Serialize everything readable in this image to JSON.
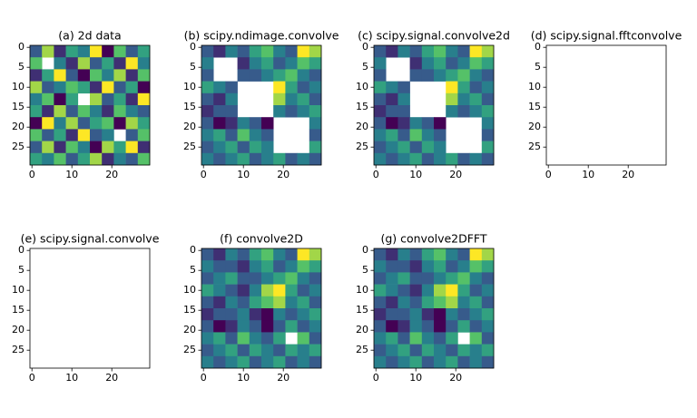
{
  "chart_data": [
    {
      "type": "heatmap",
      "title": "(a) 2d data",
      "xlim": [
        -0.5,
        29.5
      ],
      "ylim": [
        29.5,
        -0.5
      ],
      "xticks": [
        0,
        10,
        20
      ],
      "yticks": [
        0,
        5,
        10,
        15,
        20,
        25
      ],
      "cmap": "viridis",
      "values": [
        [
          3,
          7,
          2,
          5,
          4,
          8,
          1,
          6,
          3,
          5
        ],
        [
          6,
          null,
          4,
          2,
          7,
          3,
          5,
          2,
          8,
          4
        ],
        [
          2,
          5,
          8,
          3,
          1,
          6,
          4,
          7,
          2,
          6
        ],
        [
          7,
          3,
          4,
          6,
          5,
          2,
          8,
          3,
          5,
          1
        ],
        [
          4,
          6,
          1,
          5,
          null,
          7,
          3,
          5,
          2,
          8
        ],
        [
          5,
          2,
          7,
          3,
          6,
          4,
          2,
          6,
          4,
          3
        ],
        [
          1,
          8,
          4,
          7,
          3,
          5,
          6,
          1,
          7,
          5
        ],
        [
          6,
          3,
          5,
          2,
          8,
          3,
          4,
          null,
          3,
          6
        ],
        [
          3,
          7,
          2,
          6,
          4,
          1,
          7,
          5,
          8,
          2
        ],
        [
          5,
          4,
          6,
          3,
          5,
          7,
          2,
          4,
          3,
          6
        ]
      ]
    },
    {
      "type": "heatmap",
      "title": "(b) scipy.ndimage.convolve",
      "xlim": [
        -0.5,
        29.5
      ],
      "ylim": [
        29.5,
        -0.5
      ],
      "xticks": [
        0,
        10,
        20
      ],
      "yticks": [
        0,
        5,
        10,
        15,
        20,
        25
      ],
      "cmap": "viridis",
      "values": [
        [
          3,
          2,
          4,
          3,
          5,
          6,
          4,
          3,
          8,
          7
        ],
        [
          4,
          null,
          null,
          2,
          4,
          5,
          3,
          4,
          6,
          5
        ],
        [
          3,
          null,
          null,
          3,
          3,
          4,
          5,
          6,
          4,
          3
        ],
        [
          5,
          4,
          3,
          null,
          null,
          null,
          8,
          5,
          3,
          4
        ],
        [
          3,
          2,
          4,
          null,
          null,
          null,
          7,
          4,
          5,
          3
        ],
        [
          2,
          3,
          3,
          null,
          null,
          null,
          4,
          3,
          4,
          5
        ],
        [
          3,
          1,
          2,
          4,
          3,
          1,
          null,
          null,
          null,
          4
        ],
        [
          4,
          5,
          3,
          6,
          4,
          3,
          null,
          null,
          null,
          3
        ],
        [
          3,
          4,
          5,
          3,
          5,
          4,
          null,
          null,
          null,
          5
        ],
        [
          4,
          3,
          4,
          5,
          3,
          4,
          5,
          3,
          4,
          3
        ]
      ]
    },
    {
      "type": "heatmap",
      "title": "(c) scipy.signal.convolve2d",
      "xlim": [
        -0.5,
        29.5
      ],
      "ylim": [
        29.5,
        -0.5
      ],
      "xticks": [
        0,
        10,
        20
      ],
      "yticks": [
        0,
        5,
        10,
        15,
        20,
        25
      ],
      "cmap": "viridis",
      "values": [
        [
          3,
          2,
          4,
          3,
          5,
          6,
          4,
          3,
          8,
          7
        ],
        [
          4,
          null,
          null,
          2,
          4,
          5,
          3,
          4,
          6,
          5
        ],
        [
          3,
          null,
          null,
          3,
          3,
          4,
          5,
          6,
          4,
          3
        ],
        [
          5,
          4,
          3,
          null,
          null,
          null,
          8,
          5,
          3,
          4
        ],
        [
          3,
          2,
          4,
          null,
          null,
          null,
          7,
          4,
          5,
          3
        ],
        [
          2,
          3,
          3,
          null,
          null,
          null,
          4,
          3,
          4,
          5
        ],
        [
          3,
          1,
          2,
          4,
          3,
          1,
          null,
          null,
          null,
          4
        ],
        [
          4,
          5,
          3,
          6,
          4,
          3,
          null,
          null,
          null,
          3
        ],
        [
          3,
          4,
          5,
          3,
          5,
          4,
          null,
          null,
          null,
          5
        ],
        [
          4,
          3,
          4,
          5,
          3,
          4,
          5,
          3,
          4,
          3
        ]
      ]
    },
    {
      "type": "heatmap",
      "title": "(d) scipy.signal.fftconvolve",
      "xlim": [
        -0.5,
        29.5
      ],
      "ylim": [
        29.5,
        -0.5
      ],
      "xticks": [
        0,
        10,
        20
      ],
      "yticks": [
        0,
        5,
        10,
        15,
        20,
        25
      ],
      "cmap": "viridis"
    },
    {
      "type": "heatmap",
      "title": "(e) scipy.signal.convolve",
      "xlim": [
        -0.5,
        29.5
      ],
      "ylim": [
        29.5,
        -0.5
      ],
      "xticks": [
        0,
        10,
        20
      ],
      "yticks": [
        0,
        5,
        10,
        15,
        20,
        25
      ],
      "cmap": "viridis"
    },
    {
      "type": "heatmap",
      "title": "(f) convolve2D",
      "xlim": [
        -0.5,
        29.5
      ],
      "ylim": [
        29.5,
        -0.5
      ],
      "xticks": [
        0,
        10,
        20
      ],
      "yticks": [
        0,
        5,
        10,
        15,
        20,
        25
      ],
      "cmap": "viridis",
      "values": [
        [
          3,
          2,
          4,
          3,
          5,
          6,
          4,
          3,
          8,
          7
        ],
        [
          4,
          3,
          3,
          2,
          4,
          5,
          3,
          4,
          6,
          5
        ],
        [
          3,
          4,
          5,
          3,
          3,
          4,
          5,
          6,
          4,
          3
        ],
        [
          5,
          4,
          3,
          2,
          4,
          7,
          8,
          5,
          3,
          4
        ],
        [
          3,
          2,
          4,
          3,
          5,
          6,
          7,
          4,
          5,
          3
        ],
        [
          2,
          3,
          3,
          4,
          2,
          1,
          4,
          3,
          4,
          5
        ],
        [
          3,
          1,
          2,
          4,
          3,
          1,
          3,
          5,
          3,
          4
        ],
        [
          4,
          5,
          3,
          6,
          4,
          3,
          5,
          null,
          6,
          3
        ],
        [
          3,
          4,
          5,
          3,
          5,
          4,
          3,
          5,
          4,
          5
        ],
        [
          4,
          3,
          4,
          5,
          3,
          4,
          5,
          3,
          4,
          3
        ]
      ]
    },
    {
      "type": "heatmap",
      "title": "(g) convolve2DFFT",
      "xlim": [
        -0.5,
        29.5
      ],
      "ylim": [
        29.5,
        -0.5
      ],
      "xticks": [
        0,
        10,
        20
      ],
      "yticks": [
        0,
        5,
        10,
        15,
        20,
        25
      ],
      "cmap": "viridis",
      "values": [
        [
          3,
          2,
          4,
          3,
          5,
          6,
          4,
          3,
          8,
          7
        ],
        [
          4,
          3,
          3,
          2,
          4,
          5,
          3,
          4,
          6,
          5
        ],
        [
          3,
          4,
          5,
          3,
          3,
          4,
          5,
          6,
          4,
          3
        ],
        [
          5,
          4,
          3,
          2,
          4,
          7,
          8,
          5,
          3,
          4
        ],
        [
          3,
          2,
          4,
          3,
          5,
          6,
          7,
          4,
          5,
          3
        ],
        [
          2,
          3,
          3,
          4,
          2,
          1,
          4,
          3,
          4,
          5
        ],
        [
          3,
          1,
          2,
          4,
          3,
          1,
          3,
          5,
          3,
          4
        ],
        [
          4,
          5,
          3,
          6,
          4,
          3,
          5,
          null,
          6,
          3
        ],
        [
          3,
          4,
          5,
          3,
          5,
          4,
          3,
          5,
          4,
          5
        ],
        [
          4,
          3,
          4,
          5,
          3,
          4,
          5,
          3,
          4,
          3
        ]
      ]
    }
  ]
}
